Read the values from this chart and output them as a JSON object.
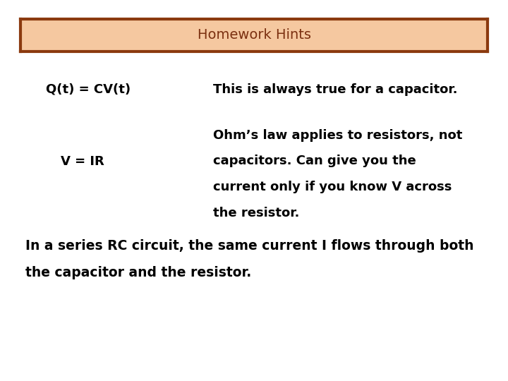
{
  "title": "Homework Hints",
  "title_bg_color": "#F5C8A0",
  "title_border_color": "#8B3A0F",
  "title_text_color": "#7B3010",
  "bg_color": "#FFFFFF",
  "formula1": "Q(t) = CV(t)",
  "formula2": "V = IR",
  "desc1": "This is always true for a capacitor.",
  "desc2_line1": "Ohm’s law applies to resistors, not",
  "desc2_line2": "capacitors. Can give you the",
  "desc2_line3": "current only if you know V across",
  "desc2_line4": "the resistor.",
  "bottom_line1": "In a series RC circuit, the same current I flows through both",
  "bottom_line2": "the capacitor and the resistor.",
  "text_color": "#000000",
  "font_size_title": 14,
  "font_size_formula": 13,
  "font_size_desc": 13,
  "font_size_bottom": 13.5
}
